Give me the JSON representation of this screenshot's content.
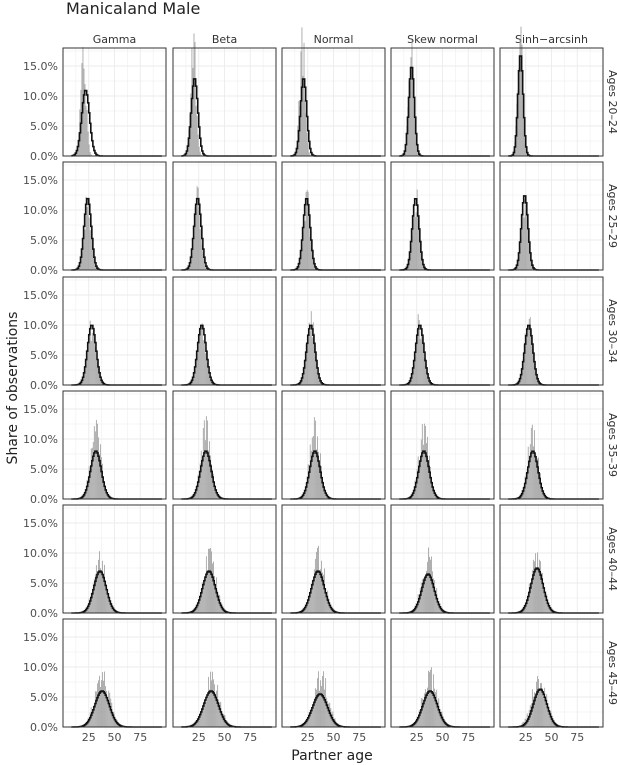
{
  "chart_data": {
    "type": "histogram-facets",
    "title": "Manicaland Male",
    "xlabel": "Partner age",
    "ylabel": "Share of observations",
    "columns": [
      "Gamma",
      "Beta",
      "Normal",
      "Skew normal",
      "Sinh−arcsinh"
    ],
    "rows": [
      "Ages 20–24",
      "Ages 25–29",
      "Ages 30–34",
      "Ages 35–39",
      "Ages 40–44",
      "Ages 45–49"
    ],
    "xlim": [
      0,
      100
    ],
    "ylim": [
      0,
      0.18
    ],
    "x_ticks": [
      25,
      50,
      75
    ],
    "x_tick_labels": [
      "25",
      "50",
      "75"
    ],
    "y_ticks": [
      0,
      0.05,
      0.1,
      0.15
    ],
    "y_tick_labels": [
      "0.0%",
      "5.0%",
      "10.0%",
      "15.0%"
    ],
    "grid": true,
    "series": [
      {
        "style": "grey filled bars"
      },
      {
        "style": "black step outline"
      }
    ],
    "observed": [
      {
        "age_group": "Ages 20–24",
        "mean": 20,
        "sd": 2.6,
        "peak": 0.18
      },
      {
        "age_group": "Ages 25–29",
        "mean": 24,
        "sd": 3.3,
        "peak": 0.12
      },
      {
        "age_group": "Ages 30–34",
        "mean": 28,
        "sd": 4.0,
        "peak": 0.1
      },
      {
        "age_group": "Ages 35–39",
        "mean": 32,
        "sd": 5.0,
        "peak": 0.11
      },
      {
        "age_group": "Ages 40–44",
        "mean": 36,
        "sd": 6.0,
        "peak": 0.09
      },
      {
        "age_group": "Ages 45–49",
        "mean": 38,
        "sd": 7.0,
        "peak": 0.08
      }
    ],
    "fitted": [
      [
        {
          "mean": 22,
          "sd": 3.8,
          "peak": 0.11
        },
        {
          "mean": 21,
          "sd": 3.2,
          "peak": 0.13
        },
        {
          "mean": 21,
          "sd": 3.0,
          "peak": 0.13
        },
        {
          "mean": 20,
          "sd": 2.7,
          "peak": 0.15
        },
        {
          "mean": 20,
          "sd": 2.5,
          "peak": 0.17
        }
      ],
      [
        {
          "mean": 24,
          "sd": 3.5,
          "peak": 0.12
        },
        {
          "mean": 24,
          "sd": 3.5,
          "peak": 0.12
        },
        {
          "mean": 24,
          "sd": 3.4,
          "peak": 0.12
        },
        {
          "mean": 24,
          "sd": 3.3,
          "peak": 0.12
        },
        {
          "mean": 24,
          "sd": 3.2,
          "peak": 0.125
        }
      ],
      [
        {
          "mean": 28,
          "sd": 4.2,
          "peak": 0.1
        },
        {
          "mean": 28,
          "sd": 4.2,
          "peak": 0.1
        },
        {
          "mean": 28,
          "sd": 4.1,
          "peak": 0.1
        },
        {
          "mean": 28,
          "sd": 4.1,
          "peak": 0.1
        },
        {
          "mean": 28,
          "sd": 4.0,
          "peak": 0.1
        }
      ],
      [
        {
          "mean": 32,
          "sd": 5.2,
          "peak": 0.08
        },
        {
          "mean": 32,
          "sd": 5.2,
          "peak": 0.08
        },
        {
          "mean": 32,
          "sd": 5.1,
          "peak": 0.08
        },
        {
          "mean": 32,
          "sd": 5.1,
          "peak": 0.08
        },
        {
          "mean": 32,
          "sd": 5.0,
          "peak": 0.08
        }
      ],
      [
        {
          "mean": 36,
          "sd": 6.0,
          "peak": 0.07
        },
        {
          "mean": 35,
          "sd": 6.2,
          "peak": 0.07
        },
        {
          "mean": 35,
          "sd": 6.2,
          "peak": 0.07
        },
        {
          "mean": 36,
          "sd": 6.0,
          "peak": 0.065
        },
        {
          "mean": 36,
          "sd": 6.0,
          "peak": 0.075
        }
      ],
      [
        {
          "mean": 38,
          "sd": 7.0,
          "peak": 0.06
        },
        {
          "mean": 37,
          "sd": 7.2,
          "peak": 0.06
        },
        {
          "mean": 37,
          "sd": 7.2,
          "peak": 0.055
        },
        {
          "mean": 38,
          "sd": 7.0,
          "peak": 0.06
        },
        {
          "mean": 39,
          "sd": 6.5,
          "peak": 0.063
        }
      ]
    ]
  }
}
